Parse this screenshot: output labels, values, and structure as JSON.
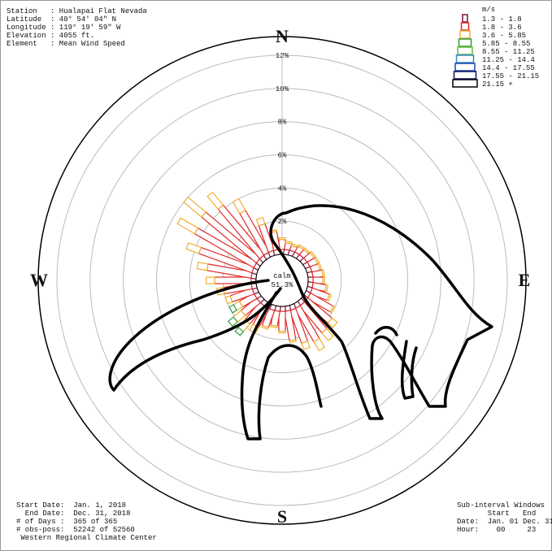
{
  "chart_data": {
    "type": "windrose",
    "info": [
      "Station   : Hualapai Flat Nevada",
      "Latitude  : 40° 54' 04\" N",
      "Longitude : 119° 19' 59\" W",
      "Elevation : 4055 ft.",
      "Element   : Mean Wind Speed"
    ],
    "compass": [
      "N",
      "E",
      "S",
      "W"
    ],
    "legend_title": "m/s",
    "calm_label": "calm",
    "calm": 51.3,
    "calm_value_label": "51.3%",
    "rlim": [
      0,
      12
    ],
    "rticks": [
      {
        "value": 2,
        "label": "2%"
      },
      {
        "value": 4,
        "label": "4%"
      },
      {
        "value": 6,
        "label": "6%"
      },
      {
        "value": 8,
        "label": "8%"
      },
      {
        "value": 10,
        "label": "10%"
      },
      {
        "value": 12,
        "label": "12%"
      }
    ],
    "series": [
      {
        "name": "1.3 - 1.8",
        "color": "#7a1040",
        "values": [
          0.3,
          0.3,
          0.3,
          0.3,
          0.3,
          0.3,
          0.3,
          0.3,
          0.3,
          0.3,
          0.3,
          0.3,
          0.3,
          0.3,
          0.3,
          0.3,
          0.3,
          0.3,
          0.3,
          0.3,
          0.3,
          0.3,
          0.3,
          0.3,
          0.3,
          0.3,
          0.3,
          0.3,
          0.3,
          0.3,
          0.3,
          0.3,
          0.3,
          0.3,
          0.3,
          0.3
        ]
      },
      {
        "name": "1.8 - 3.6",
        "color": "#e02828",
        "values": [
          0.6,
          0.4,
          0.3,
          0.4,
          0.4,
          0.5,
          0.5,
          0.5,
          0.6,
          0.6,
          0.8,
          1.1,
          1.6,
          1.9,
          2.1,
          2.3,
          2.1,
          1.8,
          1.2,
          0.9,
          1.1,
          1.3,
          1.4,
          1.2,
          1.0,
          1.4,
          1.7,
          2.2,
          2.7,
          3.4,
          4.1,
          4.3,
          3.9,
          2.9,
          1.7,
          1.1
        ]
      },
      {
        "name": "3.6 - 5.85",
        "color": "#f0b030",
        "values": [
          0.1,
          0.1,
          0.1,
          0.1,
          0.1,
          0.1,
          0.1,
          0.1,
          0.1,
          0.1,
          0.1,
          0.1,
          0.1,
          0.4,
          0.6,
          0.6,
          0.4,
          0.1,
          0.1,
          0.1,
          0.1,
          0.4,
          0.6,
          0.6,
          0.4,
          0.3,
          0.4,
          0.5,
          0.6,
          0.8,
          1.2,
          1.4,
          1.0,
          0.8,
          0.4,
          0.1
        ]
      },
      {
        "name": "5.85 - 8.55",
        "color": "#2e9e3e",
        "values": [
          0,
          0,
          0,
          0,
          0,
          0,
          0,
          0,
          0,
          0,
          0,
          0,
          0,
          0,
          0,
          0,
          0,
          0,
          0,
          0,
          0,
          0,
          0.3,
          0.4,
          0.3,
          0,
          0,
          0,
          0,
          0,
          0,
          0,
          0,
          0,
          0,
          0
        ]
      },
      {
        "name": "8.55 - 11.25",
        "color": "#66bb33",
        "values": [
          0,
          0,
          0,
          0,
          0,
          0,
          0,
          0,
          0,
          0,
          0,
          0,
          0,
          0,
          0,
          0,
          0,
          0,
          0,
          0,
          0,
          0,
          0,
          0,
          0,
          0,
          0,
          0,
          0,
          0,
          0,
          0,
          0,
          0,
          0,
          0
        ]
      },
      {
        "name": "11.25 - 14.4",
        "color": "#3388cc",
        "values": [
          0,
          0,
          0,
          0,
          0,
          0,
          0,
          0,
          0,
          0,
          0,
          0,
          0,
          0,
          0,
          0,
          0,
          0,
          0,
          0,
          0,
          0,
          0,
          0,
          0,
          0,
          0,
          0,
          0,
          0,
          0,
          0,
          0,
          0,
          0,
          0
        ]
      },
      {
        "name": "14.4 - 17.55",
        "color": "#2244aa",
        "values": [
          0,
          0,
          0,
          0,
          0,
          0,
          0,
          0,
          0,
          0,
          0,
          0,
          0,
          0,
          0,
          0,
          0,
          0,
          0,
          0,
          0,
          0,
          0,
          0,
          0,
          0,
          0,
          0,
          0,
          0,
          0,
          0,
          0,
          0,
          0,
          0
        ]
      },
      {
        "name": "17.55 - 21.15",
        "color": "#111166",
        "values": [
          0,
          0,
          0,
          0,
          0,
          0,
          0,
          0,
          0,
          0,
          0,
          0,
          0,
          0,
          0,
          0,
          0,
          0,
          0,
          0,
          0,
          0,
          0,
          0,
          0,
          0,
          0,
          0,
          0,
          0,
          0,
          0,
          0,
          0,
          0,
          0
        ]
      },
      {
        "name": "21.15 +",
        "color": "#000000",
        "values": [
          0,
          0,
          0,
          0,
          0,
          0,
          0,
          0,
          0,
          0,
          0,
          0,
          0,
          0,
          0,
          0,
          0,
          0,
          0,
          0,
          0,
          0,
          0,
          0,
          0,
          0,
          0,
          0,
          0,
          0,
          0,
          0,
          0,
          0,
          0,
          0
        ]
      }
    ],
    "footer": [
      "Start Date:  Jan. 1, 2018",
      "  End Date:  Dec. 31, 2018",
      "# of Days :  365 of 365",
      "# obs-poss:  52242 of 52560",
      " Western Regional Climate Center"
    ],
    "subinterval": [
      "Sub-interval Windows",
      "       Start   End",
      "Date:  Jan. 01 Dec. 31",
      "Hour:    00     23"
    ]
  }
}
